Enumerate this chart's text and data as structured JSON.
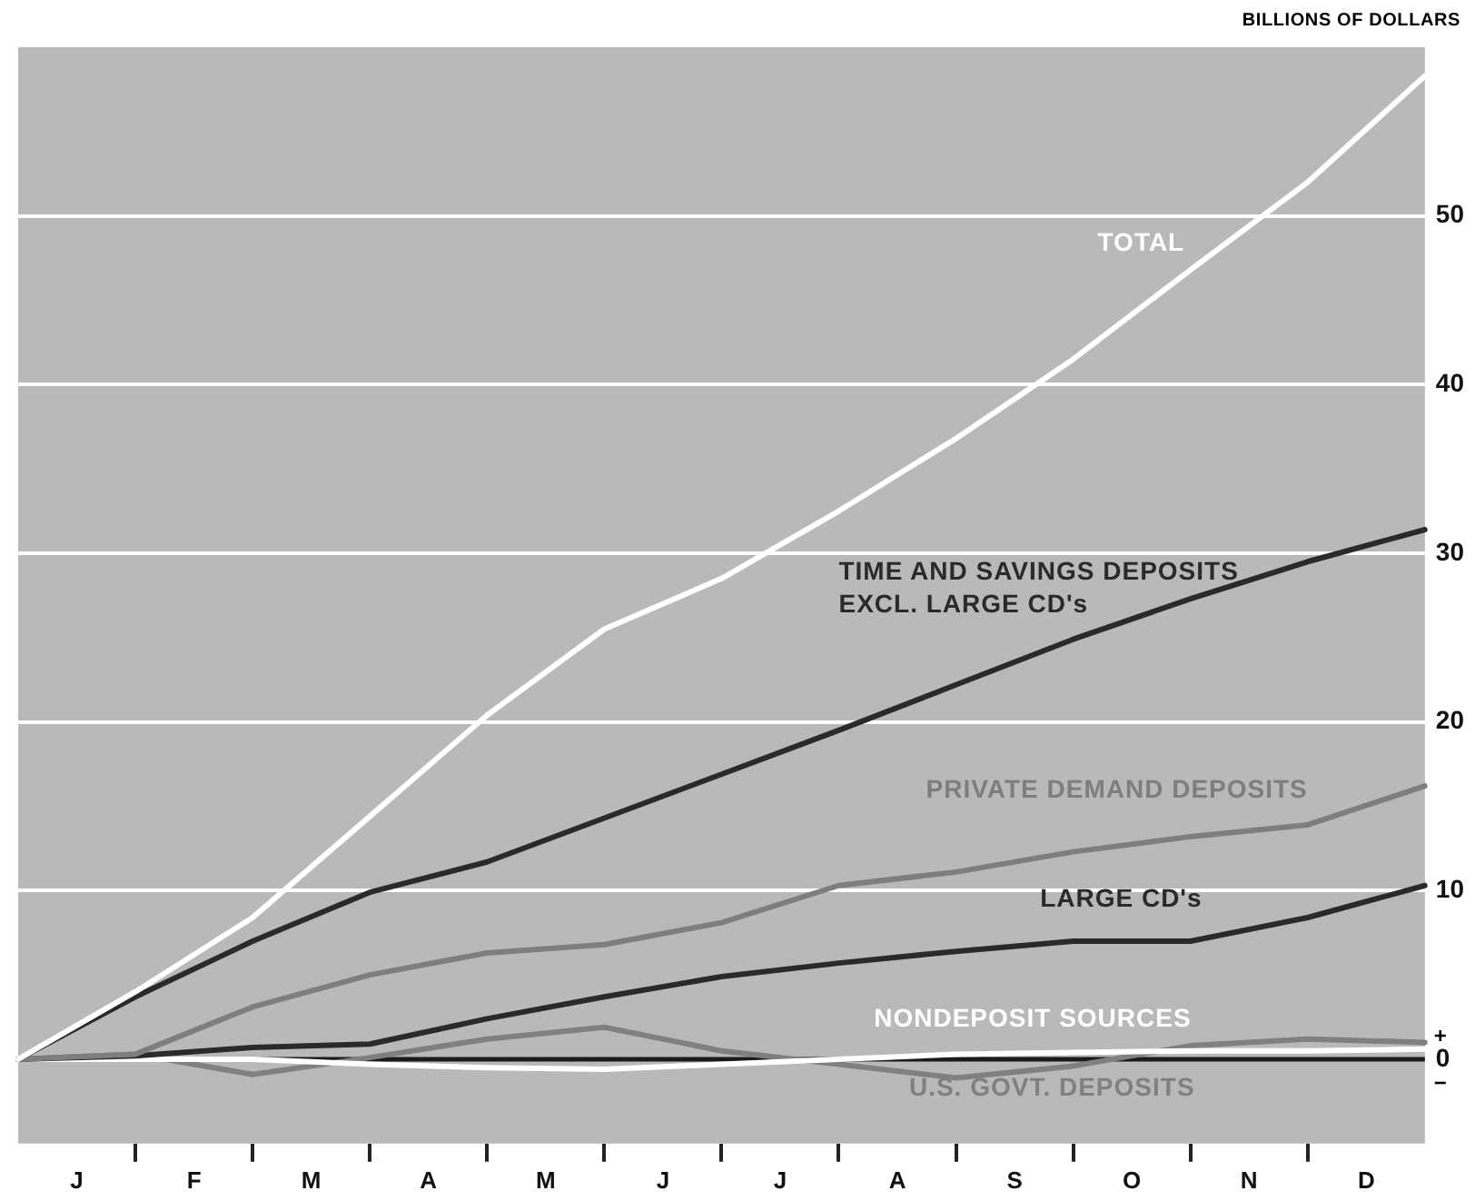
{
  "chart_data": {
    "type": "line",
    "ylabel": "BILLIONS OF DOLLARS",
    "categories": [
      null,
      "J",
      null,
      "F",
      null,
      "M",
      null,
      "A",
      null,
      "M",
      null,
      "J",
      null,
      "J",
      null,
      "A",
      null,
      "S",
      null,
      "O",
      null,
      "N",
      null,
      "D",
      null
    ],
    "ylim": [
      -5,
      60
    ],
    "yticks": [
      0,
      10,
      20,
      30,
      40,
      50
    ],
    "grid": "y",
    "legend": false,
    "marker": "none",
    "line_style": "solid",
    "ref_lines": [
      {
        "axis": "y",
        "value": 0,
        "color": "#1a1a1a"
      }
    ],
    "annotations": [
      "+",
      "−"
    ],
    "series": [
      {
        "name": "TOTAL",
        "color": "#ffffff",
        "values": [
          0,
          null,
          4,
          null,
          8.4,
          null,
          14.4,
          null,
          20.4,
          null,
          25.5,
          null,
          28.5,
          null,
          32.5,
          null,
          36.8,
          null,
          41.5,
          null,
          46.8,
          null,
          52,
          null,
          58.3
        ]
      },
      {
        "name": "TIME AND SAVINGS DEPOSITS EXCL. LARGE CD's",
        "color": "#2a2a2a",
        "values": [
          0,
          null,
          3.7,
          null,
          7,
          null,
          9.9,
          null,
          11.7,
          null,
          14.3,
          null,
          16.9,
          null,
          19.5,
          null,
          22.2,
          null,
          24.9,
          null,
          27.3,
          null,
          29.5,
          null,
          31.4
        ]
      },
      {
        "name": "PRIVATE DEMAND DEPOSITS",
        "color": "#7e7e7e",
        "values": [
          0,
          null,
          0.3,
          null,
          3.1,
          null,
          5,
          null,
          6.3,
          null,
          6.8,
          null,
          8.1,
          null,
          10.3,
          null,
          11.1,
          null,
          12.3,
          null,
          13.2,
          null,
          13.9,
          null,
          16.2
        ]
      },
      {
        "name": "LARGE CD's",
        "color": "#2a2a2a",
        "values": [
          0,
          null,
          0.2,
          null,
          0.7,
          null,
          0.9,
          null,
          2.4,
          null,
          3.7,
          null,
          4.9,
          null,
          5.7,
          null,
          6.4,
          null,
          7,
          null,
          7,
          null,
          8.4,
          null,
          10.3
        ]
      },
      {
        "name": "NONDEPOSIT SOURCES",
        "color": "#ffffff",
        "values": [
          0,
          null,
          0,
          null,
          0,
          null,
          -0.3,
          null,
          -0.5,
          null,
          -0.6,
          null,
          -0.3,
          null,
          0,
          null,
          0.3,
          null,
          0.4,
          null,
          0.5,
          null,
          0.5,
          null,
          0.6
        ]
      },
      {
        "name": "U.S. GOVT. DEPOSITS",
        "color": "#808080",
        "values": [
          0,
          null,
          0.3,
          null,
          -0.9,
          null,
          0.1,
          null,
          1.2,
          null,
          1.9,
          null,
          0.5,
          null,
          -0.3,
          null,
          -1.1,
          null,
          -0.4,
          null,
          0.8,
          null,
          1.2,
          null,
          1
        ]
      }
    ]
  }
}
